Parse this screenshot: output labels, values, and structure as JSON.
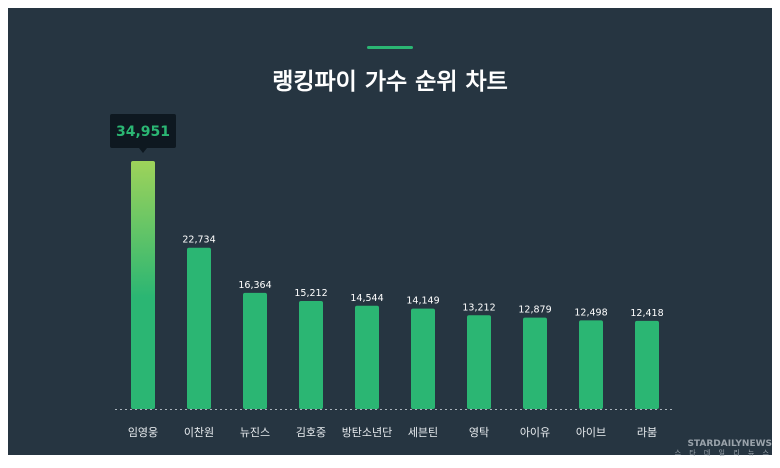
{
  "chart_data": {
    "type": "bar",
    "title": "랭킹파이 가수 순위 차트",
    "categories": [
      "임영웅",
      "이찬원",
      "뉴진스",
      "김호중",
      "방탄소년단",
      "세븐틴",
      "영탁",
      "아이유",
      "아이브",
      "라붐"
    ],
    "values": [
      34951,
      22734,
      16364,
      15212,
      14544,
      14149,
      13212,
      12879,
      12498,
      12418
    ],
    "labels": [
      "34,951",
      "22,734",
      "16,364",
      "15,212",
      "14,544",
      "14,149",
      "13,212",
      "12,879",
      "12,498",
      "12,418"
    ],
    "ylim": [
      0,
      34951
    ],
    "highlight_index": 0,
    "colors": {
      "bar": "#2bb673",
      "top": "#9ed35a",
      "highlight_label": "#2bb673"
    }
  },
  "watermark": {
    "name": "STARDAILYNEWS",
    "sub": "스 타 데 일 리 뉴 스"
  }
}
